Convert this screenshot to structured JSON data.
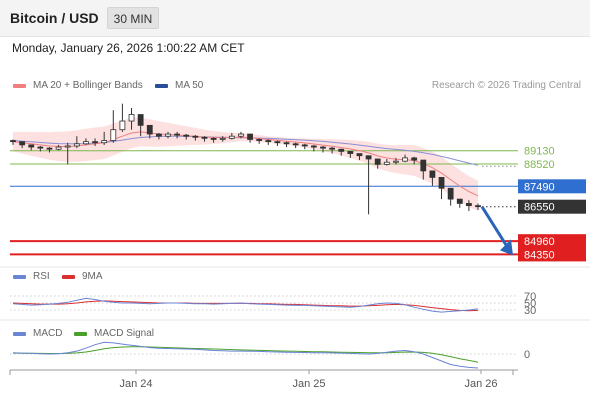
{
  "header": {
    "symbol": "Bitcoin / USD",
    "timeframe": "30 MIN",
    "datetime": "Monday, January 26, 2026 1:00:22 AM CET"
  },
  "legend": {
    "ma20": "MA 20 + Bollinger Bands",
    "ma50": "MA 50",
    "copyright": "Research © 2026 Trading Central",
    "rsi": "RSI",
    "rsi_ma": "9MA",
    "macd": "MACD",
    "macd_signal": "MACD Signal"
  },
  "colors": {
    "ma20": "#f08080",
    "band_fill": "#fcd6d6",
    "ma50": "#8a8fd6",
    "ma50_legend": "#2a4f9a",
    "resistance": "#7fb84f",
    "pivot": "#2f6fd0",
    "support": "#e02020",
    "current": "#333333",
    "arrow": "#2a66b8",
    "rsi": "#6a84d6",
    "rsi_ma": "#d93030",
    "macd": "#6a84d6",
    "macd_signal": "#4aa02a"
  },
  "chart_data": [
    {
      "type": "candlestick",
      "title": "Bitcoin / USD",
      "x_ticks": [
        "Jan 24",
        "Jan 25",
        "Jan 26"
      ],
      "levels": [
        {
          "label": "89130",
          "value": 89130,
          "kind": "resistance"
        },
        {
          "label": "88520",
          "value": 88520,
          "kind": "resistance"
        },
        {
          "label": "87490",
          "value": 87490,
          "kind": "pivot"
        },
        {
          "label": "86550",
          "value": 86550,
          "kind": "current"
        },
        {
          "label": "84960",
          "value": 84960,
          "kind": "support"
        },
        {
          "label": "84350",
          "value": 84350,
          "kind": "support"
        }
      ],
      "close": [
        89550,
        89400,
        89300,
        89250,
        89200,
        89300,
        89350,
        89450,
        89550,
        89500,
        89600,
        90100,
        90500,
        90800,
        90300,
        89900,
        89800,
        89900,
        89850,
        89800,
        89750,
        89700,
        89650,
        89700,
        89800,
        89900,
        89650,
        89600,
        89550,
        89500,
        89450,
        89400,
        89350,
        89300,
        89250,
        89200,
        89100,
        89000,
        88900,
        88750,
        88500,
        88600,
        88650,
        88800,
        88700,
        88200,
        87900,
        87400,
        86900,
        86700,
        86600,
        86550
      ],
      "high": [
        89650,
        89500,
        89400,
        89350,
        89300,
        89400,
        89500,
        89800,
        89700,
        89700,
        90000,
        91000,
        91300,
        91100,
        90600,
        90100,
        89950,
        90000,
        90000,
        89900,
        89850,
        89800,
        89750,
        89800,
        89950,
        90000,
        89800,
        89700,
        89650,
        89600,
        89550,
        89500,
        89450,
        89400,
        89350,
        89300,
        89200,
        89100,
        89000,
        88900,
        88700,
        88750,
        88800,
        88950,
        88850,
        88400,
        88100,
        87650,
        87100,
        86900,
        86850,
        86700
      ],
      "low": [
        89400,
        89250,
        89150,
        89100,
        89050,
        89150,
        88500,
        89250,
        89400,
        89350,
        89400,
        89500,
        90000,
        90100,
        89800,
        89700,
        89650,
        89700,
        89700,
        89650,
        89600,
        89550,
        89500,
        89550,
        89650,
        89700,
        89500,
        89450,
        89400,
        89350,
        89300,
        89250,
        89200,
        89100,
        89050,
        89000,
        88900,
        88800,
        88700,
        86200,
        88300,
        88450,
        88500,
        88600,
        88500,
        87800,
        87500,
        86900,
        86600,
        86500,
        86350,
        86400
      ],
      "ma20": [
        89550,
        89500,
        89450,
        89400,
        89350,
        89330,
        89320,
        89350,
        89400,
        89450,
        89500,
        89650,
        89800,
        89950,
        90000,
        89950,
        89900,
        89880,
        89850,
        89820,
        89790,
        89760,
        89740,
        89730,
        89740,
        89760,
        89730,
        89690,
        89650,
        89610,
        89570,
        89530,
        89490,
        89440,
        89390,
        89340,
        89280,
        89210,
        89130,
        89030,
        88890,
        88800,
        88740,
        88720,
        88680,
        88530,
        88350,
        88100,
        87800,
        87500,
        87250,
        87050
      ],
      "ma50": [
        89600,
        89570,
        89540,
        89510,
        89480,
        89460,
        89450,
        89450,
        89460,
        89480,
        89510,
        89560,
        89620,
        89690,
        89740,
        89770,
        89790,
        89800,
        89800,
        89790,
        89780,
        89770,
        89760,
        89750,
        89740,
        89730,
        89720,
        89710,
        89700,
        89680,
        89660,
        89640,
        89620,
        89590,
        89560,
        89520,
        89480,
        89440,
        89390,
        89340,
        89280,
        89230,
        89190,
        89150,
        89100,
        89040,
        88960,
        88870,
        88770,
        88660,
        88560,
        88460
      ],
      "projection": {
        "from": 86550,
        "to": 84350
      }
    },
    {
      "type": "line",
      "title": "RSI",
      "y_ticks": [
        "70",
        "50",
        "30"
      ],
      "series": [
        {
          "name": "RSI",
          "values": [
            48,
            46,
            44,
            45,
            47,
            49,
            52,
            58,
            63,
            60,
            55,
            52,
            50,
            50,
            49,
            48,
            49,
            50,
            50,
            49,
            48,
            48,
            47,
            48,
            49,
            50,
            48,
            47,
            46,
            45,
            44,
            43,
            43,
            42,
            41,
            40,
            39,
            38,
            40,
            44,
            48,
            50,
            49,
            45,
            38,
            32,
            27,
            24,
            26,
            28,
            30,
            33
          ]
        },
        {
          "name": "9MA",
          "values": [
            50,
            49,
            48,
            47,
            47,
            47,
            48,
            50,
            53,
            55,
            56,
            55,
            54,
            53,
            52,
            51,
            50,
            50,
            50,
            50,
            49,
            49,
            49,
            49,
            49,
            49,
            49,
            48,
            48,
            47,
            46,
            46,
            45,
            44,
            43,
            42,
            42,
            41,
            41,
            42,
            43,
            45,
            46,
            45,
            43,
            40,
            37,
            34,
            31,
            29,
            28,
            29
          ]
        }
      ]
    },
    {
      "type": "line",
      "title": "MACD",
      "y_ticks": [
        "0"
      ],
      "series": [
        {
          "name": "MACD",
          "values": [
            20,
            15,
            10,
            5,
            0,
            5,
            20,
            50,
            100,
            160,
            200,
            190,
            170,
            150,
            130,
            110,
            100,
            95,
            90,
            85,
            80,
            70,
            60,
            55,
            50,
            50,
            48,
            45,
            40,
            35,
            30,
            28,
            25,
            22,
            20,
            18,
            15,
            10,
            5,
            0,
            10,
            30,
            50,
            60,
            40,
            0,
            -60,
            -120,
            -180,
            -210,
            -230,
            -240
          ]
        },
        {
          "name": "MACD Signal",
          "values": [
            15,
            14,
            12,
            10,
            8,
            8,
            10,
            18,
            35,
            60,
            90,
            110,
            120,
            125,
            125,
            120,
            115,
            110,
            105,
            100,
            95,
            90,
            85,
            80,
            75,
            70,
            66,
            62,
            58,
            54,
            50,
            46,
            43,
            40,
            37,
            34,
            31,
            28,
            25,
            22,
            20,
            22,
            27,
            33,
            35,
            28,
            12,
            -12,
            -45,
            -80,
            -110,
            -140
          ]
        }
      ]
    }
  ]
}
